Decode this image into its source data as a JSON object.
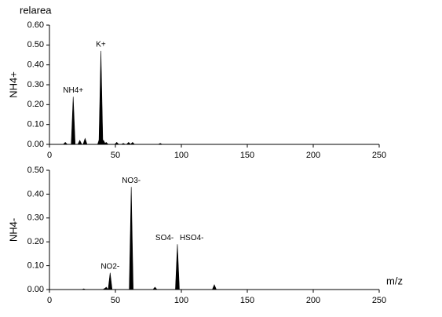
{
  "chart_data": [
    {
      "type": "spectrum",
      "y_unit_label": "relarea",
      "ylabel": "NH4+",
      "x": [
        12,
        18,
        23,
        27,
        38,
        39,
        40,
        41,
        43,
        51,
        56,
        60,
        63,
        84
      ],
      "values": [
        0.01,
        0.24,
        0.02,
        0.03,
        0.03,
        0.47,
        0.03,
        0.02,
        0.01,
        0.01,
        0.005,
        0.01,
        0.01,
        0.005
      ],
      "color": "#000000",
      "xlim": [
        0,
        250
      ],
      "xticks": [
        0,
        50,
        100,
        150,
        200,
        250
      ],
      "ylim": [
        0,
        0.6
      ],
      "yticks": [
        {
          "value": 0,
          "label": "0.00"
        },
        {
          "value": 0.1,
          "label": "0.10"
        },
        {
          "value": 0.2,
          "label": "0.20"
        },
        {
          "value": 0.3,
          "label": "0.30"
        },
        {
          "value": 0.4,
          "label": "0.40"
        },
        {
          "value": 0.5,
          "label": "0.50"
        },
        {
          "value": 0.6,
          "label": "0.60"
        }
      ],
      "annotations": [
        {
          "text": "NH4+",
          "x": 18
        },
        {
          "text": "K+",
          "x": 39
        }
      ]
    },
    {
      "type": "spectrum",
      "ylabel": "NH4-",
      "xlabel": "m/z",
      "x": [
        26,
        42,
        43,
        46,
        62,
        80,
        97,
        125
      ],
      "values": [
        0.003,
        0.005,
        0.01,
        0.07,
        0.43,
        0.01,
        0.19,
        0.02
      ],
      "color": "#000000",
      "xlim": [
        0,
        250
      ],
      "xticks": [
        0,
        50,
        100,
        150,
        200,
        250
      ],
      "ylim": [
        0,
        0.5
      ],
      "yticks": [
        {
          "value": 0,
          "label": "0.00"
        },
        {
          "value": 0.1,
          "label": "0.10"
        },
        {
          "value": 0.2,
          "label": "0.20"
        },
        {
          "value": 0.3,
          "label": "0.30"
        },
        {
          "value": 0.4,
          "label": "0.40"
        },
        {
          "value": 0.5,
          "label": "0.50"
        }
      ],
      "annotations": [
        {
          "text": "NO2-",
          "x": 46
        },
        {
          "text": "NO3-",
          "x": 62
        },
        {
          "text": "SO4-",
          "x": 96
        },
        {
          "text": "HSO4-",
          "x": 97
        }
      ]
    }
  ]
}
